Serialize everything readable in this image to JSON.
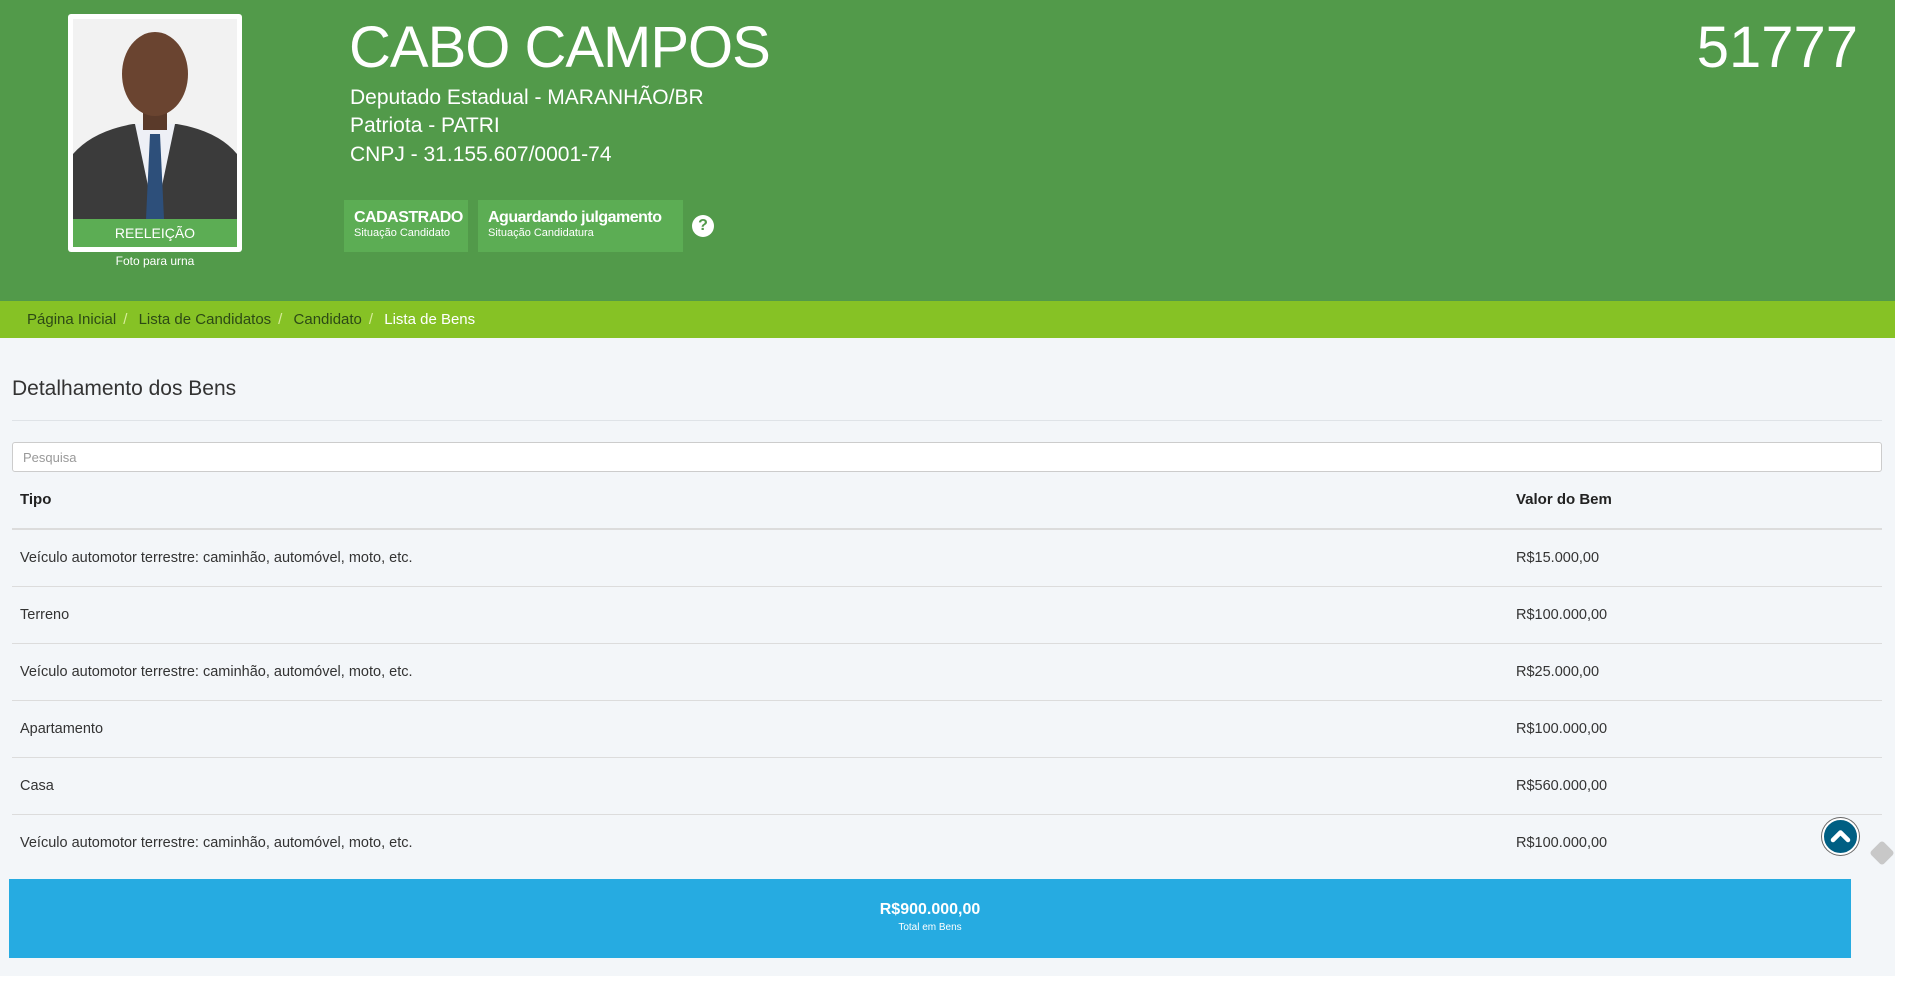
{
  "candidate": {
    "name": "CABO CAMPOS",
    "number": "51777",
    "office": "Deputado Estadual - MARANHÃO/BR",
    "party": "Patriota - PATRI",
    "cnpj": "CNPJ - 31.155.607/0001-74",
    "photo_label": "REELEIÇÃO",
    "photo_caption": "Foto para urna"
  },
  "badges": [
    {
      "value": "CADASTRADO",
      "label": "Situação Candidato"
    },
    {
      "value": "Aguardando julgamento",
      "label": "Situação Candidatura"
    }
  ],
  "help_icon": "?",
  "breadcrumb": [
    "Página Inicial",
    "Lista de Candidatos",
    "Candidato",
    "Lista de Bens"
  ],
  "section_title": "Detalhamento dos Bens",
  "search": {
    "placeholder": "Pesquisa",
    "value": ""
  },
  "table": {
    "headers": [
      "Tipo",
      "Valor do Bem"
    ],
    "rows": [
      {
        "tipo": "Veículo automotor terrestre: caminhão, automóvel, moto, etc.",
        "valor": "R$15.000,00"
      },
      {
        "tipo": "Terreno",
        "valor": "R$100.000,00"
      },
      {
        "tipo": "Veículo automotor terrestre: caminhão, automóvel, moto, etc.",
        "valor": "R$25.000,00"
      },
      {
        "tipo": "Apartamento",
        "valor": "R$100.000,00"
      },
      {
        "tipo": "Casa",
        "valor": "R$560.000,00"
      },
      {
        "tipo": "Veículo automotor terrestre: caminhão, automóvel, moto, etc.",
        "valor": "R$100.000,00"
      }
    ]
  },
  "total": {
    "value": "R$900.000,00",
    "label": "Total em Bens"
  },
  "colors": {
    "header": "#529a4a",
    "badge": "#5cad54",
    "breadcrumb": "#86c225",
    "total": "#26abe1",
    "scroll_top": "#005f83"
  }
}
